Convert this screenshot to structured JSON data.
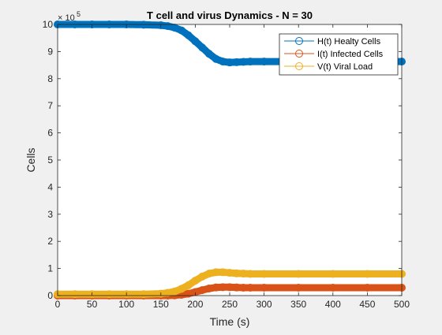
{
  "chart_data": {
    "type": "line",
    "title": "T cell and virus Dynamics - N = 30",
    "xlabel": "Time (s)",
    "ylabel": "Cells",
    "y_exponent_label": "× 10",
    "y_exponent_power": "5",
    "xlim": [
      0,
      500
    ],
    "ylim": [
      0,
      10
    ],
    "y_scale_factor": 100000,
    "x_ticks": [
      0,
      50,
      100,
      150,
      200,
      250,
      300,
      350,
      400,
      450,
      500
    ],
    "y_ticks": [
      0,
      1,
      2,
      3,
      4,
      5,
      6,
      7,
      8,
      9,
      10
    ],
    "grid": false,
    "legend_position": "top-right",
    "x": [
      0,
      25,
      50,
      75,
      100,
      125,
      150,
      160,
      170,
      180,
      190,
      200,
      210,
      220,
      230,
      240,
      250,
      260,
      270,
      280,
      300,
      350,
      400,
      450,
      500
    ],
    "series": [
      {
        "name": "H(t) Healty Cells",
        "color": "#0072BD",
        "marker": "circle",
        "values": [
          10.0,
          10.0,
          10.0,
          10.0,
          10.0,
          9.99,
          9.97,
          9.94,
          9.88,
          9.78,
          9.6,
          9.38,
          9.15,
          8.92,
          8.73,
          8.63,
          8.6,
          8.61,
          8.62,
          8.63,
          8.63,
          8.63,
          8.63,
          8.63,
          8.63
        ]
      },
      {
        "name": "I(t) Infected Cells",
        "color": "#D95319",
        "marker": "circle",
        "values": [
          0.0,
          0.0,
          0.0,
          0.0,
          0.0,
          0.0,
          0.0,
          0.0,
          0.01,
          0.03,
          0.07,
          0.13,
          0.2,
          0.26,
          0.3,
          0.31,
          0.31,
          0.3,
          0.29,
          0.29,
          0.29,
          0.29,
          0.29,
          0.29,
          0.29
        ]
      },
      {
        "name": "V(t) Viral Load",
        "color": "#EDB120",
        "marker": "circle",
        "values": [
          0.05,
          0.05,
          0.05,
          0.05,
          0.05,
          0.05,
          0.07,
          0.1,
          0.15,
          0.25,
          0.38,
          0.55,
          0.7,
          0.81,
          0.86,
          0.86,
          0.84,
          0.82,
          0.81,
          0.8,
          0.8,
          0.8,
          0.8,
          0.8,
          0.8
        ]
      }
    ]
  }
}
